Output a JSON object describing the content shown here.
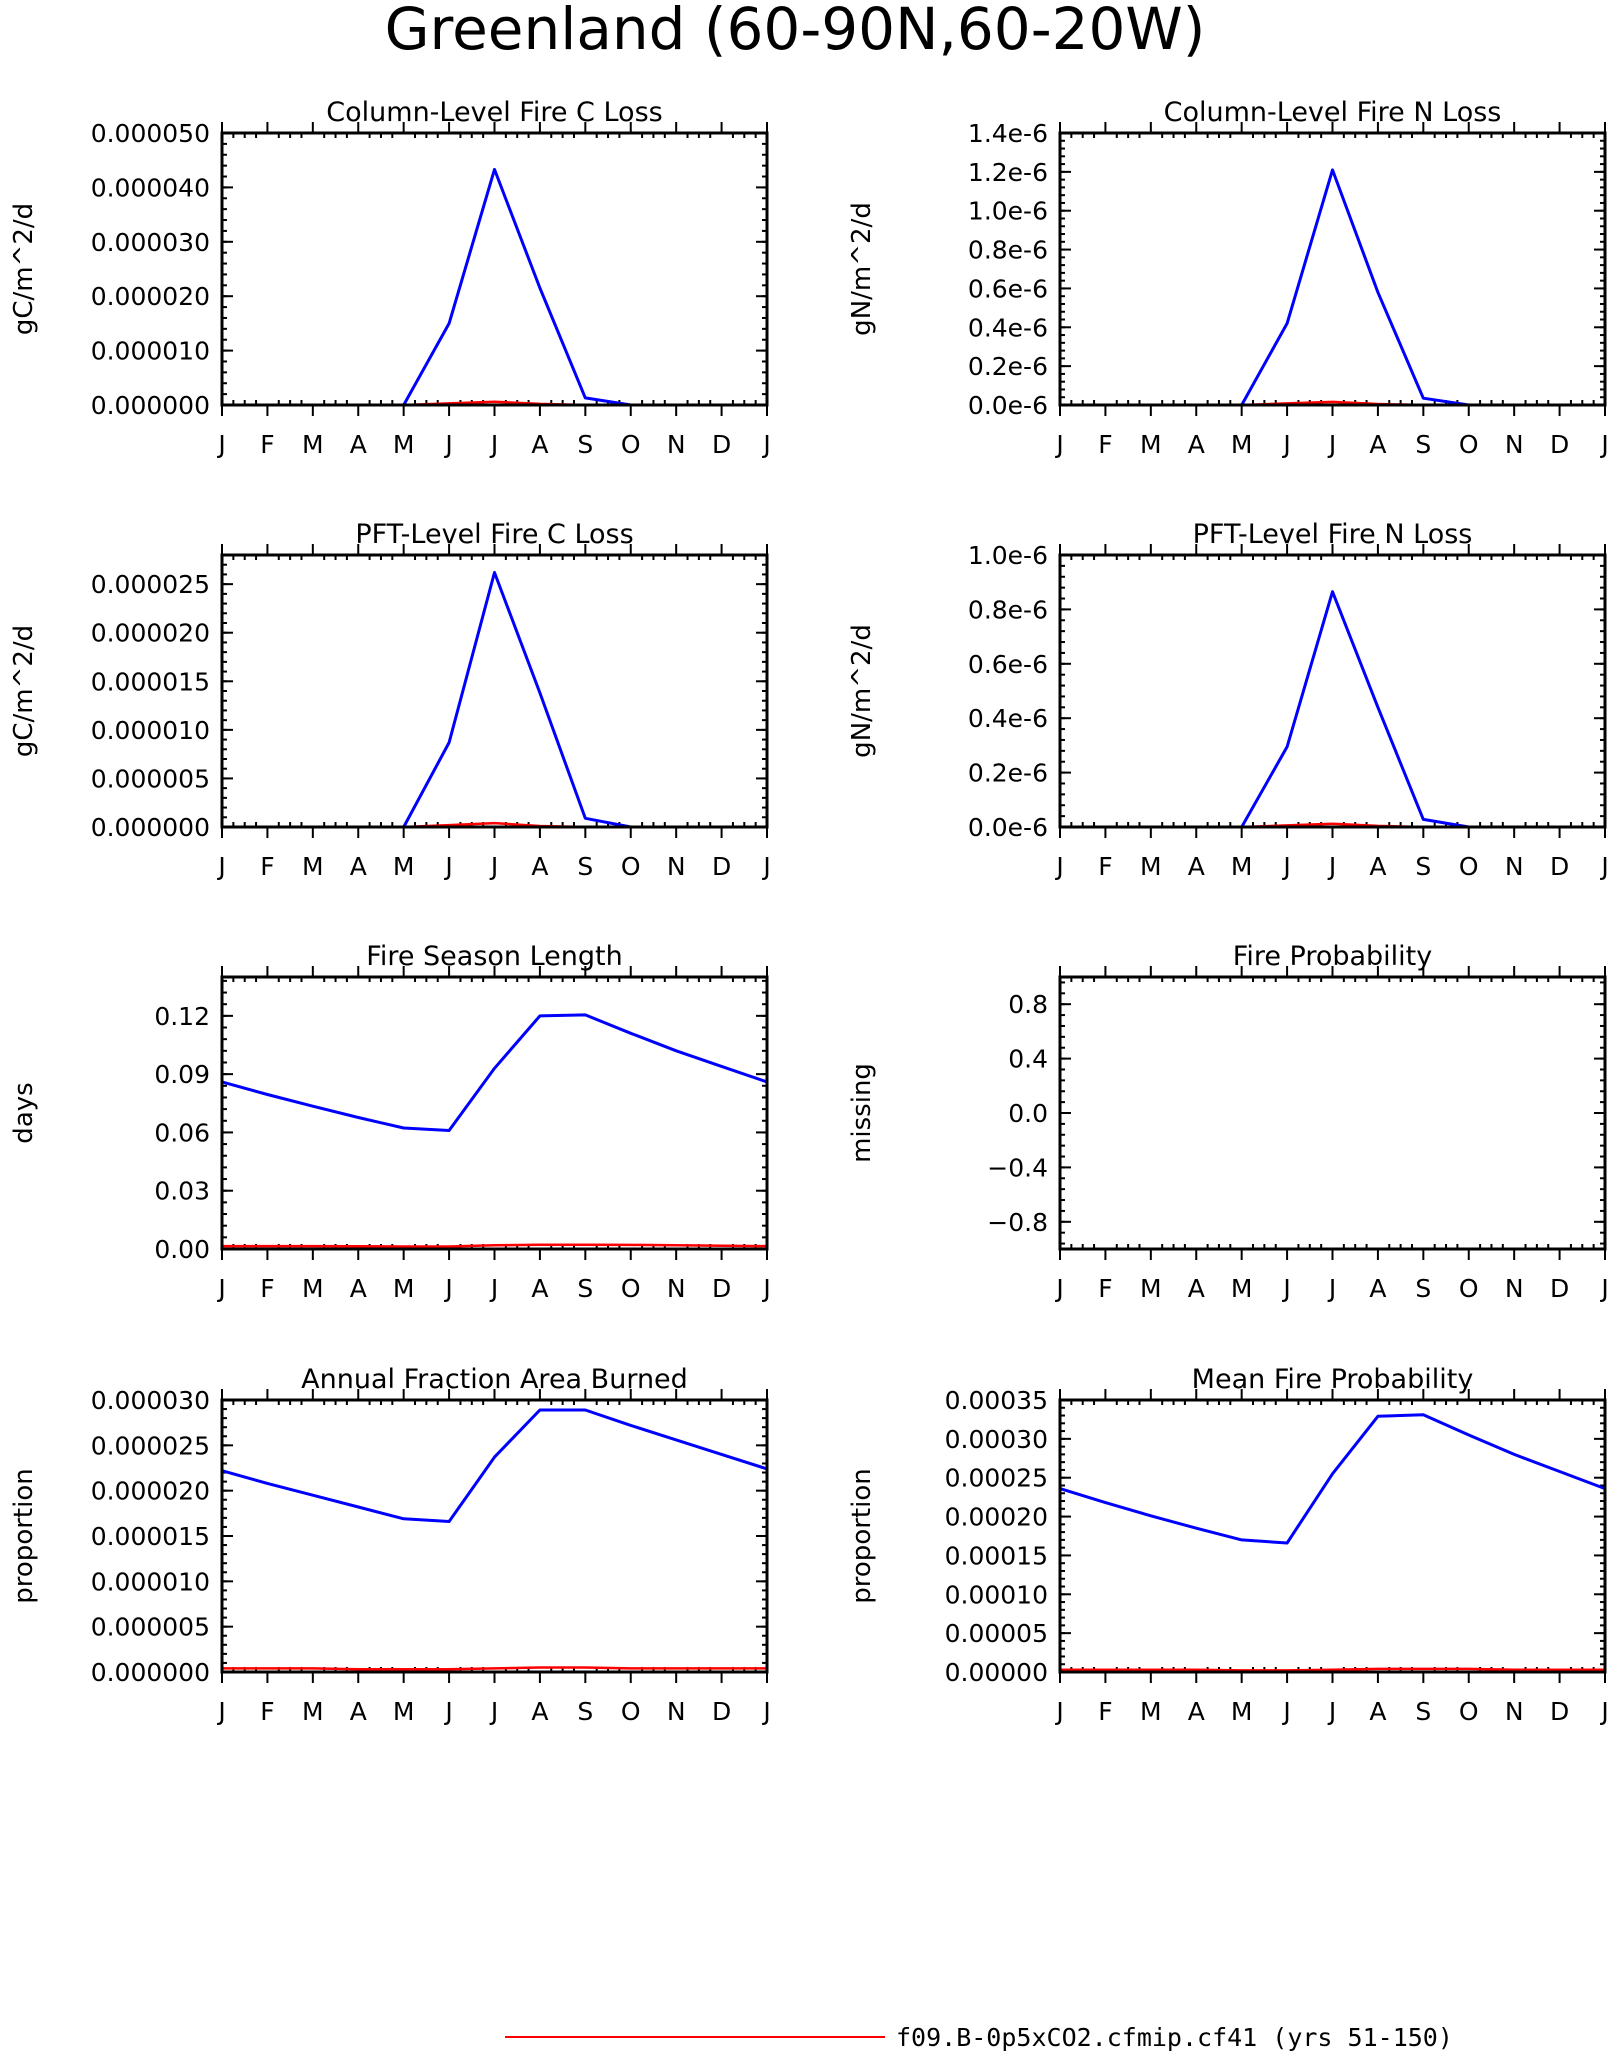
{
  "figure_title": "Greenland (60-90N,60-20W)",
  "legend": {
    "label": "f09.B-0p5xCO2.cfmip.cf41 (yrs 51-150)",
    "color": "#ff0000"
  },
  "colors": {
    "series_primary": "#0000ff",
    "series_secondary": "#ff0000",
    "axes": "#000000"
  },
  "chart_data": [
    {
      "type": "line",
      "title": "Column-Level Fire C Loss",
      "ylabel": "gC/m^2/d",
      "categories": [
        "J",
        "F",
        "M",
        "A",
        "M",
        "J",
        "J",
        "A",
        "S",
        "O",
        "N",
        "D",
        "J"
      ],
      "ylim": [
        0,
        5e-05
      ],
      "yticks": [
        0,
        1e-05,
        2e-05,
        3e-05,
        4e-05,
        5e-05
      ],
      "yticklabels": [
        "0.000000",
        "0.000010",
        "0.000020",
        "0.000030",
        "0.000040",
        "0.000050"
      ],
      "series": [
        {
          "color": "#0000ff",
          "values": [
            0,
            0,
            0,
            0,
            0,
            1.5e-05,
            4.33e-05,
            2.15e-05,
            1.3e-06,
            0,
            0,
            0,
            0
          ]
        },
        {
          "color": "#ff0000",
          "values": [
            0,
            0,
            0,
            0,
            0,
            3e-07,
            6e-07,
            2e-07,
            0,
            0,
            0,
            0,
            0
          ]
        }
      ]
    },
    {
      "type": "line",
      "title": "Column-Level Fire N Loss",
      "ylabel": "gN/m^2/d",
      "categories": [
        "J",
        "F",
        "M",
        "A",
        "M",
        "J",
        "J",
        "A",
        "S",
        "O",
        "N",
        "D",
        "J"
      ],
      "ylim": [
        0,
        1.4e-06
      ],
      "yticks": [
        0,
        2e-07,
        4e-07,
        6e-07,
        8e-07,
        1e-06,
        1.2e-06,
        1.4e-06
      ],
      "yticklabels": [
        "0.0e-6",
        "0.2e-6",
        "0.4e-6",
        "0.6e-6",
        "0.8e-6",
        "1.0e-6",
        "1.2e-6",
        "1.4e-6"
      ],
      "series": [
        {
          "color": "#0000ff",
          "values": [
            0,
            0,
            0,
            0,
            0,
            4.2e-07,
            1.21e-06,
            5.8e-07,
            3.5e-08,
            0,
            0,
            0,
            0
          ]
        },
        {
          "color": "#ff0000",
          "values": [
            0,
            0,
            0,
            0,
            0,
            8e-09,
            1.6e-08,
            5e-09,
            0,
            0,
            0,
            0,
            0
          ]
        }
      ]
    },
    {
      "type": "line",
      "title": "PFT-Level Fire C Loss",
      "ylabel": "gC/m^2/d",
      "categories": [
        "J",
        "F",
        "M",
        "A",
        "M",
        "J",
        "J",
        "A",
        "S",
        "O",
        "N",
        "D",
        "J"
      ],
      "ylim": [
        0,
        2.8e-05
      ],
      "yticks": [
        0,
        5e-06,
        1e-05,
        1.5e-05,
        2e-05,
        2.5e-05
      ],
      "yticklabels": [
        "0.000000",
        "0.000005",
        "0.000010",
        "0.000015",
        "0.000020",
        "0.000025"
      ],
      "series": [
        {
          "color": "#0000ff",
          "values": [
            0,
            0,
            0,
            0,
            0,
            8.7e-06,
            2.62e-05,
            1.38e-05,
            9e-07,
            0,
            0,
            0,
            0
          ]
        },
        {
          "color": "#ff0000",
          "values": [
            0,
            0,
            0,
            0,
            0,
            2e-07,
            4e-07,
            1e-07,
            0,
            0,
            0,
            0,
            0
          ]
        }
      ]
    },
    {
      "type": "line",
      "title": "PFT-Level Fire N Loss",
      "ylabel": "gN/m^2/d",
      "categories": [
        "J",
        "F",
        "M",
        "A",
        "M",
        "J",
        "J",
        "A",
        "S",
        "O",
        "N",
        "D",
        "J"
      ],
      "ylim": [
        0,
        1e-06
      ],
      "yticks": [
        0,
        2e-07,
        4e-07,
        6e-07,
        8e-07,
        1e-06
      ],
      "yticklabels": [
        "0.0e-6",
        "0.2e-6",
        "0.4e-6",
        "0.6e-6",
        "0.8e-6",
        "1.0e-6"
      ],
      "series": [
        {
          "color": "#0000ff",
          "values": [
            0,
            0,
            0,
            0,
            0,
            2.95e-07,
            8.65e-07,
            4.4e-07,
            2.8e-08,
            0,
            0,
            0,
            0
          ]
        },
        {
          "color": "#ff0000",
          "values": [
            0,
            0,
            0,
            0,
            0,
            6e-09,
            1.2e-08,
            4e-09,
            0,
            0,
            0,
            0,
            0
          ]
        }
      ]
    },
    {
      "type": "line",
      "title": "Fire Season Length",
      "ylabel": "days",
      "categories": [
        "J",
        "F",
        "M",
        "A",
        "M",
        "J",
        "J",
        "A",
        "S",
        "O",
        "N",
        "D",
        "J"
      ],
      "ylim": [
        0,
        0.14
      ],
      "yticks": [
        0,
        0.03,
        0.06,
        0.09,
        0.12
      ],
      "yticklabels": [
        "0.00",
        "0.03",
        "0.06",
        "0.09",
        "0.12"
      ],
      "series": [
        {
          "color": "#0000ff",
          "values": [
            0.086,
            0.0795,
            0.0735,
            0.0677,
            0.0623,
            0.061,
            0.093,
            0.12,
            0.1205,
            0.111,
            0.102,
            0.094,
            0.086
          ]
        },
        {
          "color": "#ff0000",
          "values": [
            0.0015,
            0.0015,
            0.0015,
            0.0014,
            0.0013,
            0.0013,
            0.0019,
            0.0022,
            0.0022,
            0.0021,
            0.0019,
            0.0017,
            0.0015
          ]
        }
      ]
    },
    {
      "type": "line",
      "title": "Fire Probability",
      "ylabel": "missing",
      "categories": [
        "J",
        "F",
        "M",
        "A",
        "M",
        "J",
        "J",
        "A",
        "S",
        "O",
        "N",
        "D",
        "J"
      ],
      "ylim": [
        -1,
        1
      ],
      "yticks": [
        -0.8,
        -0.4,
        0.0,
        0.4,
        0.8
      ],
      "yticklabels": [
        "−0.8",
        "−0.4",
        "0.0",
        "0.4",
        "0.8"
      ],
      "series": []
    },
    {
      "type": "line",
      "title": "Annual Fraction Area Burned",
      "ylabel": "proportion",
      "categories": [
        "J",
        "F",
        "M",
        "A",
        "M",
        "J",
        "J",
        "A",
        "S",
        "O",
        "N",
        "D",
        "J"
      ],
      "ylim": [
        0,
        3e-05
      ],
      "yticks": [
        0,
        5e-06,
        1e-05,
        1.5e-05,
        2e-05,
        2.5e-05,
        3e-05
      ],
      "yticklabels": [
        "0.000000",
        "0.000005",
        "0.000010",
        "0.000015",
        "0.000020",
        "0.000025",
        "0.000030"
      ],
      "series": [
        {
          "color": "#0000ff",
          "values": [
            2.22e-05,
            2.08e-05,
            1.95e-05,
            1.82e-05,
            1.69e-05,
            1.66e-05,
            2.37e-05,
            2.89e-05,
            2.89e-05,
            2.72e-05,
            2.56e-05,
            2.4e-05,
            2.24e-05
          ]
        },
        {
          "color": "#ff0000",
          "values": [
            4e-07,
            4e-07,
            4e-07,
            3e-07,
            3e-07,
            3e-07,
            4e-07,
            5e-07,
            5e-07,
            4e-07,
            4e-07,
            4e-07,
            4e-07
          ]
        }
      ]
    },
    {
      "type": "line",
      "title": "Mean Fire Probability",
      "ylabel": "proportion",
      "categories": [
        "J",
        "F",
        "M",
        "A",
        "M",
        "J",
        "J",
        "A",
        "S",
        "O",
        "N",
        "D",
        "J"
      ],
      "ylim": [
        0,
        0.00035
      ],
      "yticks": [
        0,
        5e-05,
        0.0001,
        0.00015,
        0.0002,
        0.00025,
        0.0003,
        0.00035
      ],
      "yticklabels": [
        "0.00000",
        "0.00005",
        "0.00010",
        "0.00015",
        "0.00020",
        "0.00025",
        "0.00030",
        "0.00035"
      ],
      "series": [
        {
          "color": "#0000ff",
          "values": [
            0.000236,
            0.000218,
            0.000201,
            0.000185,
            0.00017,
            0.000166,
            0.000255,
            0.000329,
            0.000331,
            0.000305,
            0.00028,
            0.000258,
            0.000236
          ]
        },
        {
          "color": "#ff0000",
          "values": [
            3e-06,
            3e-06,
            3e-06,
            3e-06,
            2e-06,
            2e-06,
            3e-06,
            4e-06,
            4e-06,
            4e-06,
            3e-06,
            3e-06,
            3e-06
          ]
        }
      ]
    }
  ]
}
